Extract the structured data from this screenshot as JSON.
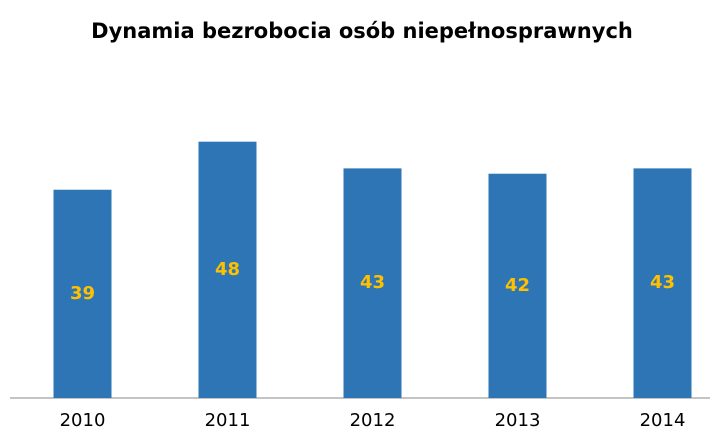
{
  "chart_data": {
    "type": "bar",
    "title": "Dynamia bezrobocia osób niepełnosprawnych",
    "categories": [
      "2010",
      "2011",
      "2012",
      "2013",
      "2014"
    ],
    "values": [
      39,
      48,
      43,
      42,
      43
    ],
    "color": "#2e75b6",
    "label_color": "#ffc000",
    "ylim": [
      0,
      50
    ],
    "grid": false
  }
}
